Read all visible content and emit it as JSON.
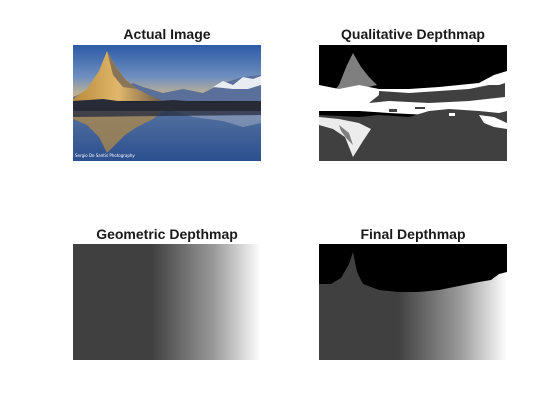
{
  "figure": {
    "panels": [
      {
        "title": "Actual Image",
        "image_credit": "Sergio De Santis Photography"
      },
      {
        "title": "Qualitative Depthmap"
      },
      {
        "title": "Geometric Depthmap"
      },
      {
        "title": "Final Depthmap"
      }
    ]
  },
  "colors": {
    "background": "#ffffff",
    "title_text": "#1a1a1a",
    "depth_black": "#000000",
    "depth_dark_gray": "#404040",
    "depth_mid_gray": "#808080",
    "depth_white": "#ffffff",
    "sky_top": "#2f5da8",
    "sky_bottom": "#e8c57a",
    "lake": "#3a5f9a"
  },
  "icons": []
}
